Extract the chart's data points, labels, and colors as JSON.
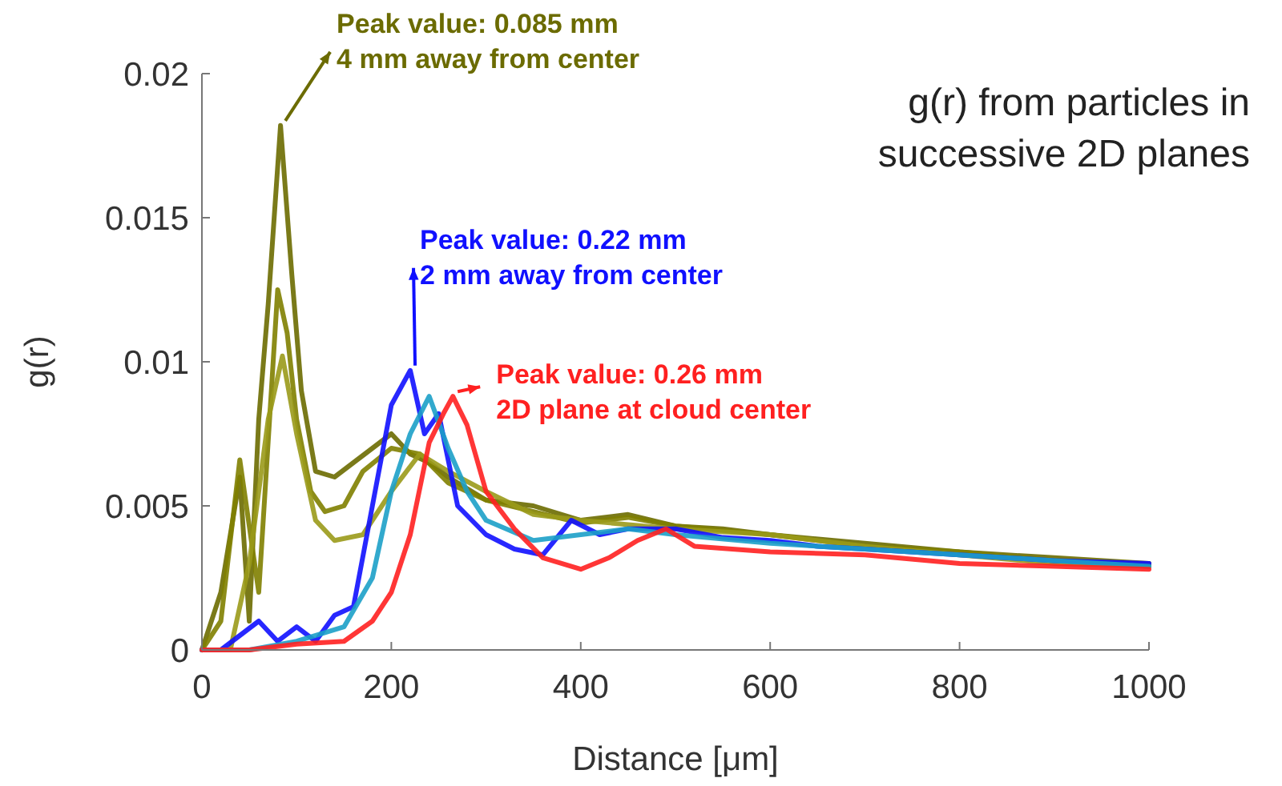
{
  "chart_data": {
    "type": "line",
    "title": "g(r) from particles in successive 2D planes",
    "xlabel": "Distance [μm]",
    "ylabel": "g(r)",
    "xlim": [
      0,
      1000
    ],
    "xticks": [
      0,
      200,
      400,
      600,
      800,
      1000
    ],
    "ylim": [
      0,
      0.02
    ],
    "yticks": [
      0,
      0.005,
      0.01,
      0.015,
      0.02
    ],
    "grid": false,
    "marker": "none",
    "line_style": "solid",
    "series": [
      {
        "color": "#6b6b00",
        "x": [
          0,
          20,
          40,
          50,
          60,
          70,
          83,
          95,
          105,
          120,
          140,
          160,
          180,
          200,
          220,
          240,
          260,
          300,
          350,
          400,
          450,
          500,
          550,
          600,
          700,
          800,
          900,
          1000
        ],
        "values": [
          0,
          0.002,
          0.006,
          0.001,
          0.008,
          0.012,
          0.0182,
          0.013,
          0.009,
          0.0062,
          0.006,
          0.0065,
          0.007,
          0.0075,
          0.0068,
          0.0065,
          0.006,
          0.0052,
          0.005,
          0.0045,
          0.0047,
          0.0043,
          0.0042,
          0.004,
          0.0037,
          0.0034,
          0.0032,
          0.003
        ]
      },
      {
        "color": "#808000",
        "x": [
          0,
          20,
          40,
          60,
          80,
          90,
          100,
          115,
          130,
          150,
          170,
          200,
          230,
          260,
          300,
          350,
          400,
          450,
          500,
          600,
          700,
          800,
          900,
          1000
        ],
        "values": [
          0,
          0.001,
          0.0066,
          0.002,
          0.0125,
          0.011,
          0.008,
          0.0055,
          0.0048,
          0.005,
          0.0062,
          0.007,
          0.0068,
          0.0058,
          0.0052,
          0.0048,
          0.0044,
          0.0046,
          0.0043,
          0.004,
          0.0036,
          0.0034,
          0.0031,
          0.0029
        ]
      },
      {
        "color": "#9a9a1a",
        "x": [
          0,
          30,
          50,
          70,
          85,
          100,
          120,
          140,
          170,
          200,
          230,
          260,
          300,
          350,
          400,
          500,
          600,
          700,
          800,
          900,
          1000
        ],
        "values": [
          0,
          0,
          0.003,
          0.008,
          0.0102,
          0.0075,
          0.0045,
          0.0038,
          0.004,
          0.0055,
          0.0068,
          0.0062,
          0.0055,
          0.0047,
          0.0045,
          0.0042,
          0.004,
          0.0036,
          0.0033,
          0.003,
          0.0029
        ]
      },
      {
        "color": "#1010ff",
        "x": [
          0,
          20,
          40,
          60,
          80,
          100,
          120,
          140,
          160,
          180,
          200,
          220,
          235,
          250,
          270,
          300,
          330,
          360,
          390,
          420,
          450,
          500,
          550,
          600,
          650,
          700,
          800,
          900,
          1000
        ],
        "values": [
          0,
          0,
          0.0005,
          0.001,
          0.0003,
          0.0008,
          0.0003,
          0.0012,
          0.0015,
          0.005,
          0.0085,
          0.0097,
          0.0075,
          0.0082,
          0.005,
          0.004,
          0.0035,
          0.0033,
          0.0045,
          0.004,
          0.0042,
          0.0042,
          0.0039,
          0.0038,
          0.0036,
          0.0035,
          0.0033,
          0.0031,
          0.003
        ]
      },
      {
        "color": "#1ca0c8",
        "x": [
          0,
          50,
          100,
          150,
          180,
          200,
          220,
          240,
          260,
          280,
          300,
          350,
          400,
          450,
          500,
          600,
          700,
          800,
          900,
          1000
        ],
        "values": [
          0,
          0,
          0.0003,
          0.0008,
          0.0025,
          0.0055,
          0.0075,
          0.0088,
          0.007,
          0.0055,
          0.0045,
          0.0038,
          0.004,
          0.0042,
          0.004,
          0.0037,
          0.0035,
          0.0033,
          0.0031,
          0.0029
        ]
      },
      {
        "color": "#ff2020",
        "x": [
          0,
          50,
          100,
          150,
          180,
          200,
          220,
          240,
          255,
          265,
          280,
          300,
          330,
          360,
          400,
          430,
          460,
          490,
          520,
          560,
          600,
          700,
          800,
          900,
          1000
        ],
        "values": [
          0,
          0,
          0.0002,
          0.0003,
          0.001,
          0.002,
          0.004,
          0.0072,
          0.0082,
          0.0088,
          0.0078,
          0.0055,
          0.0042,
          0.0032,
          0.0028,
          0.0032,
          0.0038,
          0.0042,
          0.0036,
          0.0035,
          0.0034,
          0.0033,
          0.003,
          0.0029,
          0.0028
        ]
      }
    ],
    "annotations": [
      {
        "text": "Peak value: 0.085 mm\n4 mm away from center",
        "x": 83,
        "y": 0.0182
      },
      {
        "text": "Peak value: 0.22 mm\n2 mm away from center",
        "x": 220,
        "y": 0.0097
      },
      {
        "text": "Peak value: 0.26 mm\n2D plane at cloud center",
        "x": 265,
        "y": 0.0088
      }
    ]
  }
}
